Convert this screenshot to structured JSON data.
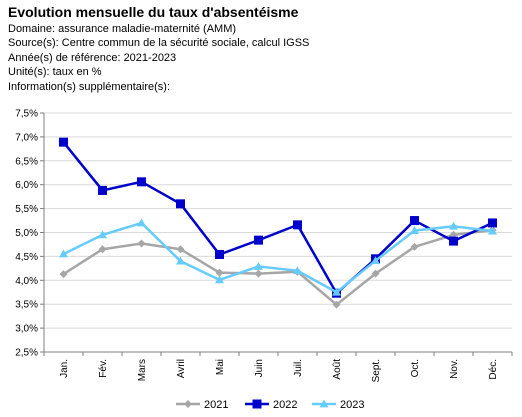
{
  "header": {
    "title": "Evolution mensuelle du taux d'absentéisme",
    "lines": [
      "Domaine: assurance maladie-maternité (AMM)",
      "Source(s): Centre commun de la sécurité sociale, calcul IGSS",
      "Année(s) de référence: 2021-2023",
      "Unité(s): taux en %",
      "Information(s) supplémentaire(s):"
    ]
  },
  "chart_data": {
    "type": "line",
    "categories": [
      "Jan.",
      "Fév.",
      "Mars",
      "Avril",
      "Mai",
      "Juin",
      "Juil.",
      "Août",
      "Sept.",
      "Oct.",
      "Nov.",
      "Déc."
    ],
    "y_ticks": [
      "2,5%",
      "3,0%",
      "3,5%",
      "4,0%",
      "4,5%",
      "5,0%",
      "5,5%",
      "6,0%",
      "6,5%",
      "7,0%",
      "7,5%"
    ],
    "ylim": [
      2.5,
      7.5
    ],
    "grid": true,
    "legend_position": "bottom",
    "series": [
      {
        "name": "2021",
        "color": "#a6a6a6",
        "marker": "diamond",
        "values": [
          4.13,
          4.65,
          4.77,
          4.65,
          4.16,
          4.14,
          4.18,
          3.49,
          4.14,
          4.7,
          4.95,
          5.05
        ]
      },
      {
        "name": "2022",
        "color": "#0000cc",
        "marker": "square",
        "values": [
          6.89,
          5.88,
          6.06,
          5.6,
          4.54,
          4.84,
          5.16,
          3.73,
          4.45,
          5.25,
          4.82,
          5.2
        ]
      },
      {
        "name": "2023",
        "color": "#66ccff",
        "marker": "triangle",
        "values": [
          4.55,
          4.95,
          5.2,
          4.4,
          4.01,
          4.29,
          4.2,
          3.75,
          4.41,
          5.04,
          5.13,
          5.03
        ]
      }
    ]
  }
}
